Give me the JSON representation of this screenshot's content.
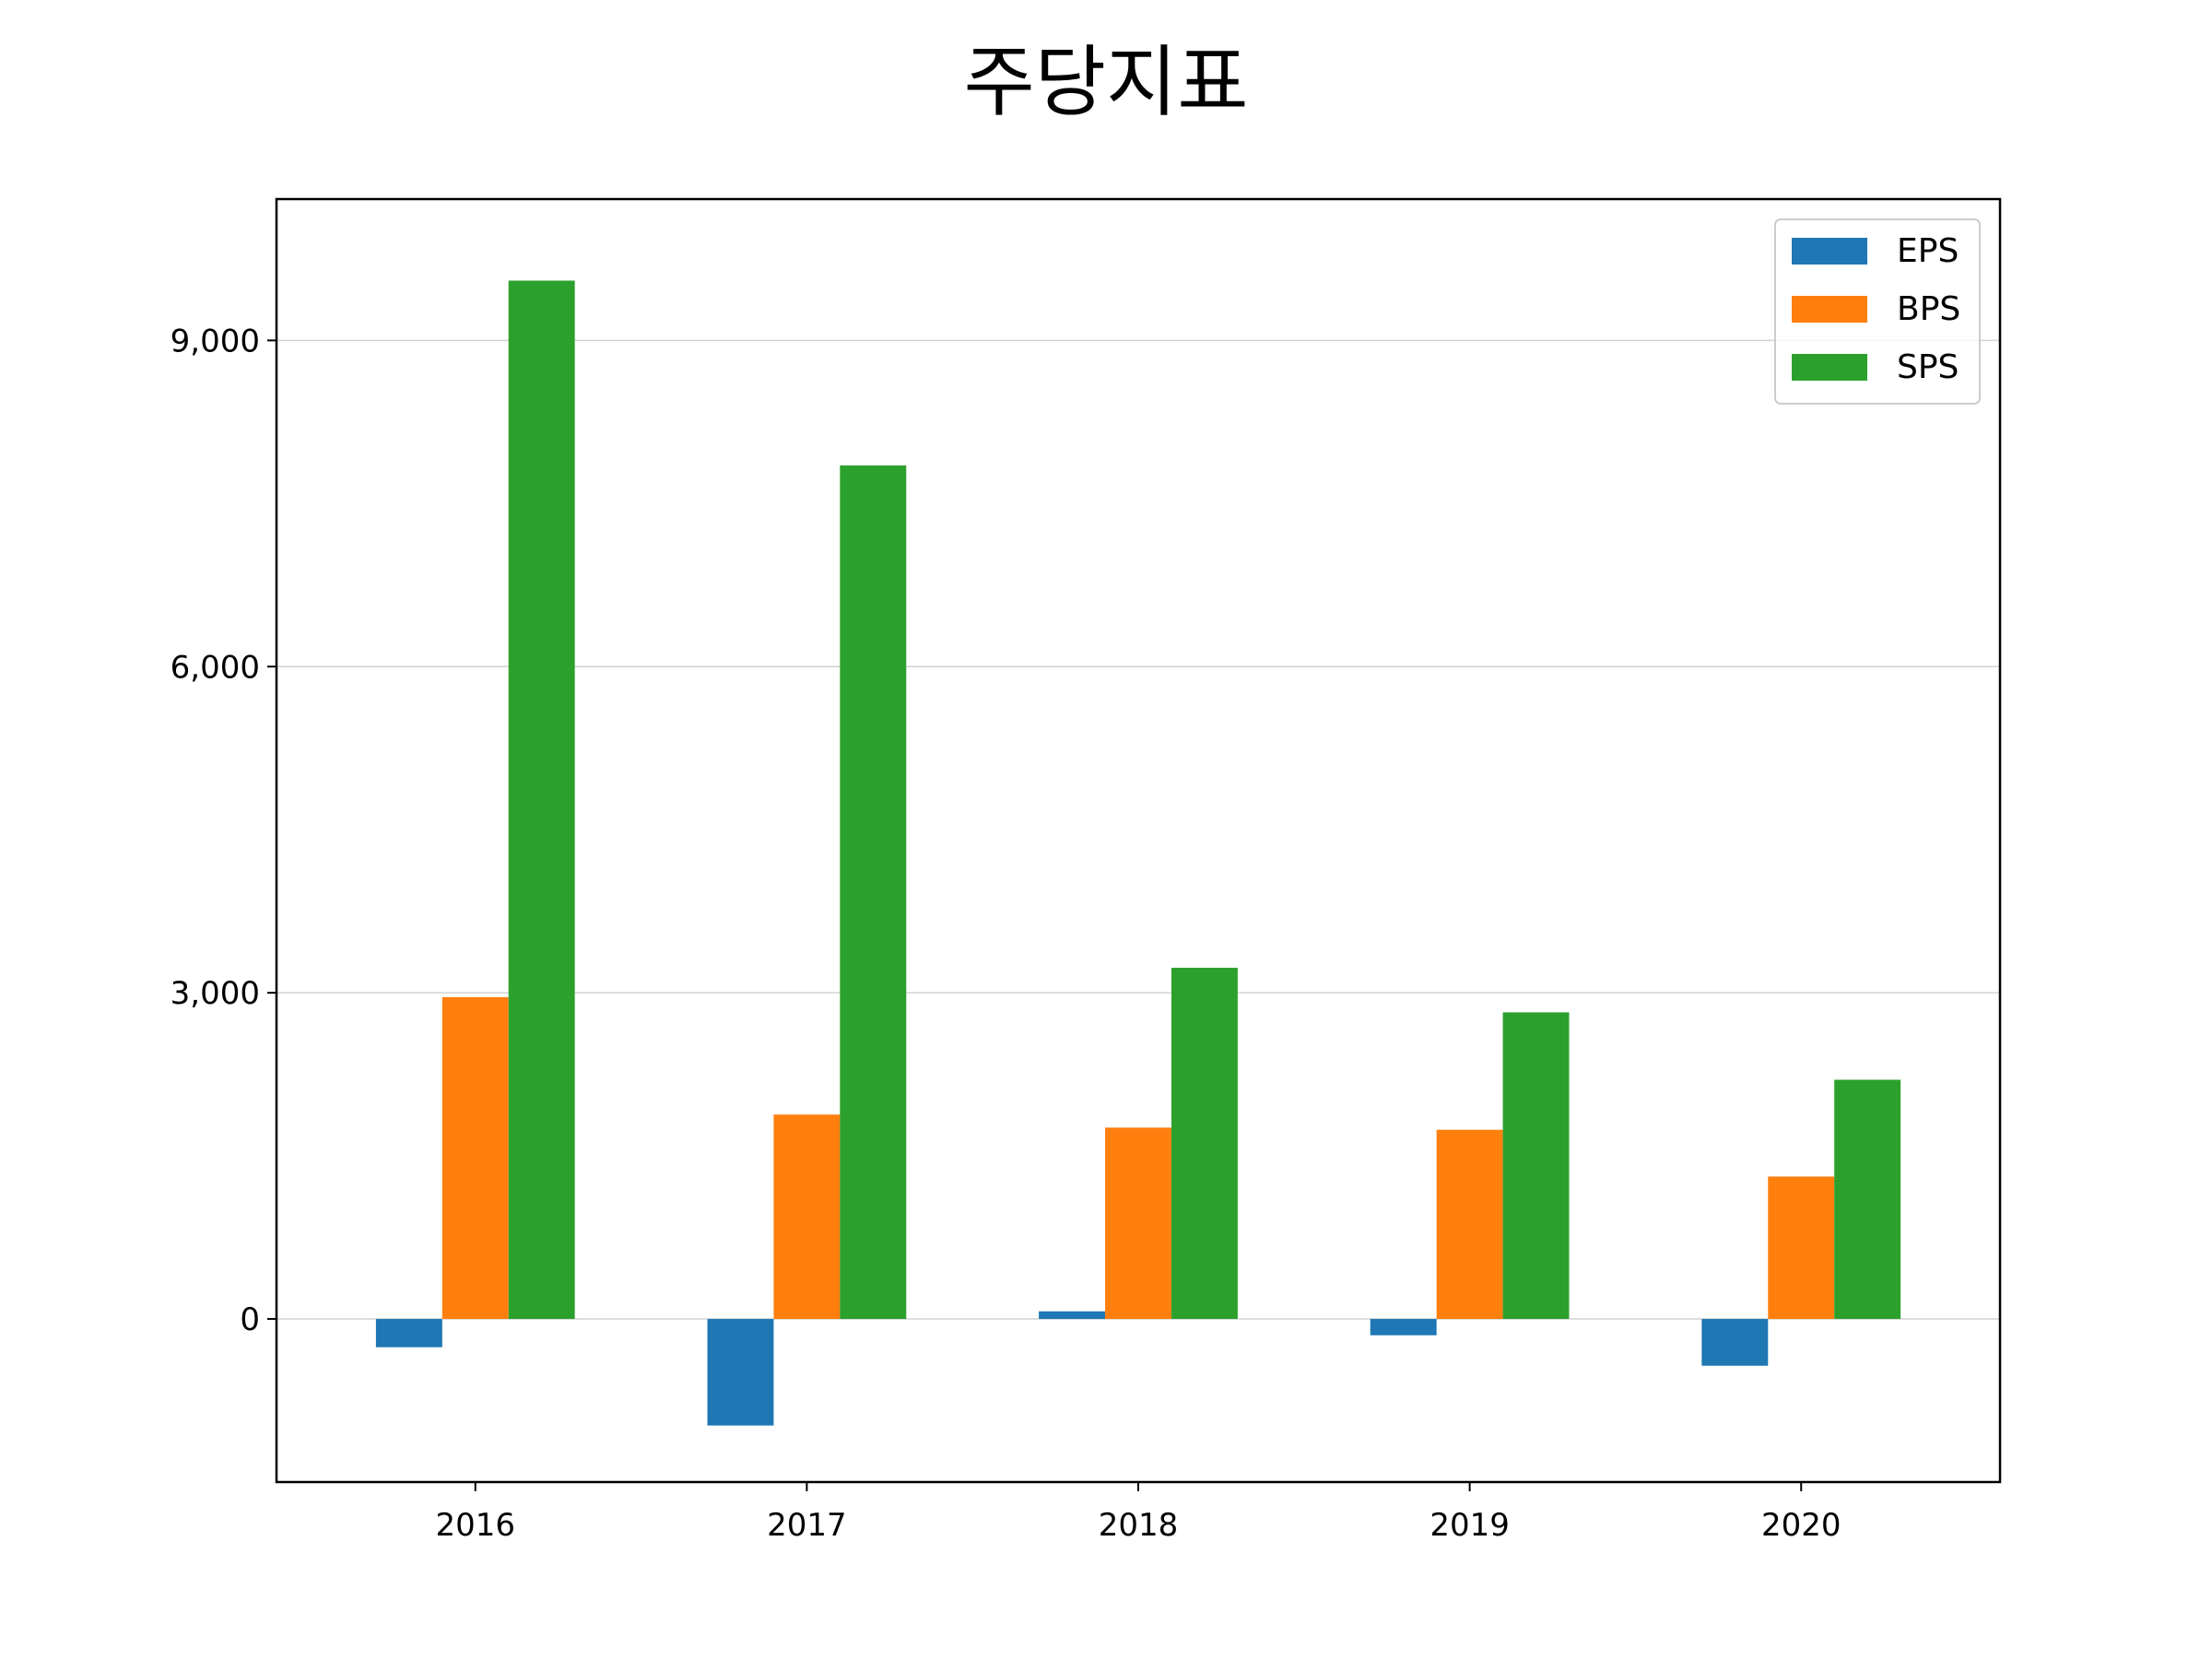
{
  "chart_data": {
    "type": "bar",
    "title": "주당지표",
    "xlabel": "",
    "ylabel": "",
    "categories": [
      "2016",
      "2017",
      "2018",
      "2019",
      "2020"
    ],
    "series": [
      {
        "name": "EPS",
        "color": "#1f77b4",
        "values": [
          -260,
          -980,
          70,
          -150,
          -430
        ]
      },
      {
        "name": "BPS",
        "color": "#ff7f0e",
        "values": [
          2960,
          1880,
          1760,
          1740,
          1310
        ]
      },
      {
        "name": "SPS",
        "color": "#2ca02c",
        "values": [
          9550,
          7850,
          3230,
          2820,
          2200
        ]
      }
    ],
    "ylim": [
      -1500,
      10300
    ],
    "yticks": [
      0,
      3000,
      6000,
      9000
    ],
    "ytick_labels": [
      "0",
      "3,000",
      "6,000",
      "9,000"
    ],
    "grid": "horizontal",
    "legend_position": "top-right"
  }
}
